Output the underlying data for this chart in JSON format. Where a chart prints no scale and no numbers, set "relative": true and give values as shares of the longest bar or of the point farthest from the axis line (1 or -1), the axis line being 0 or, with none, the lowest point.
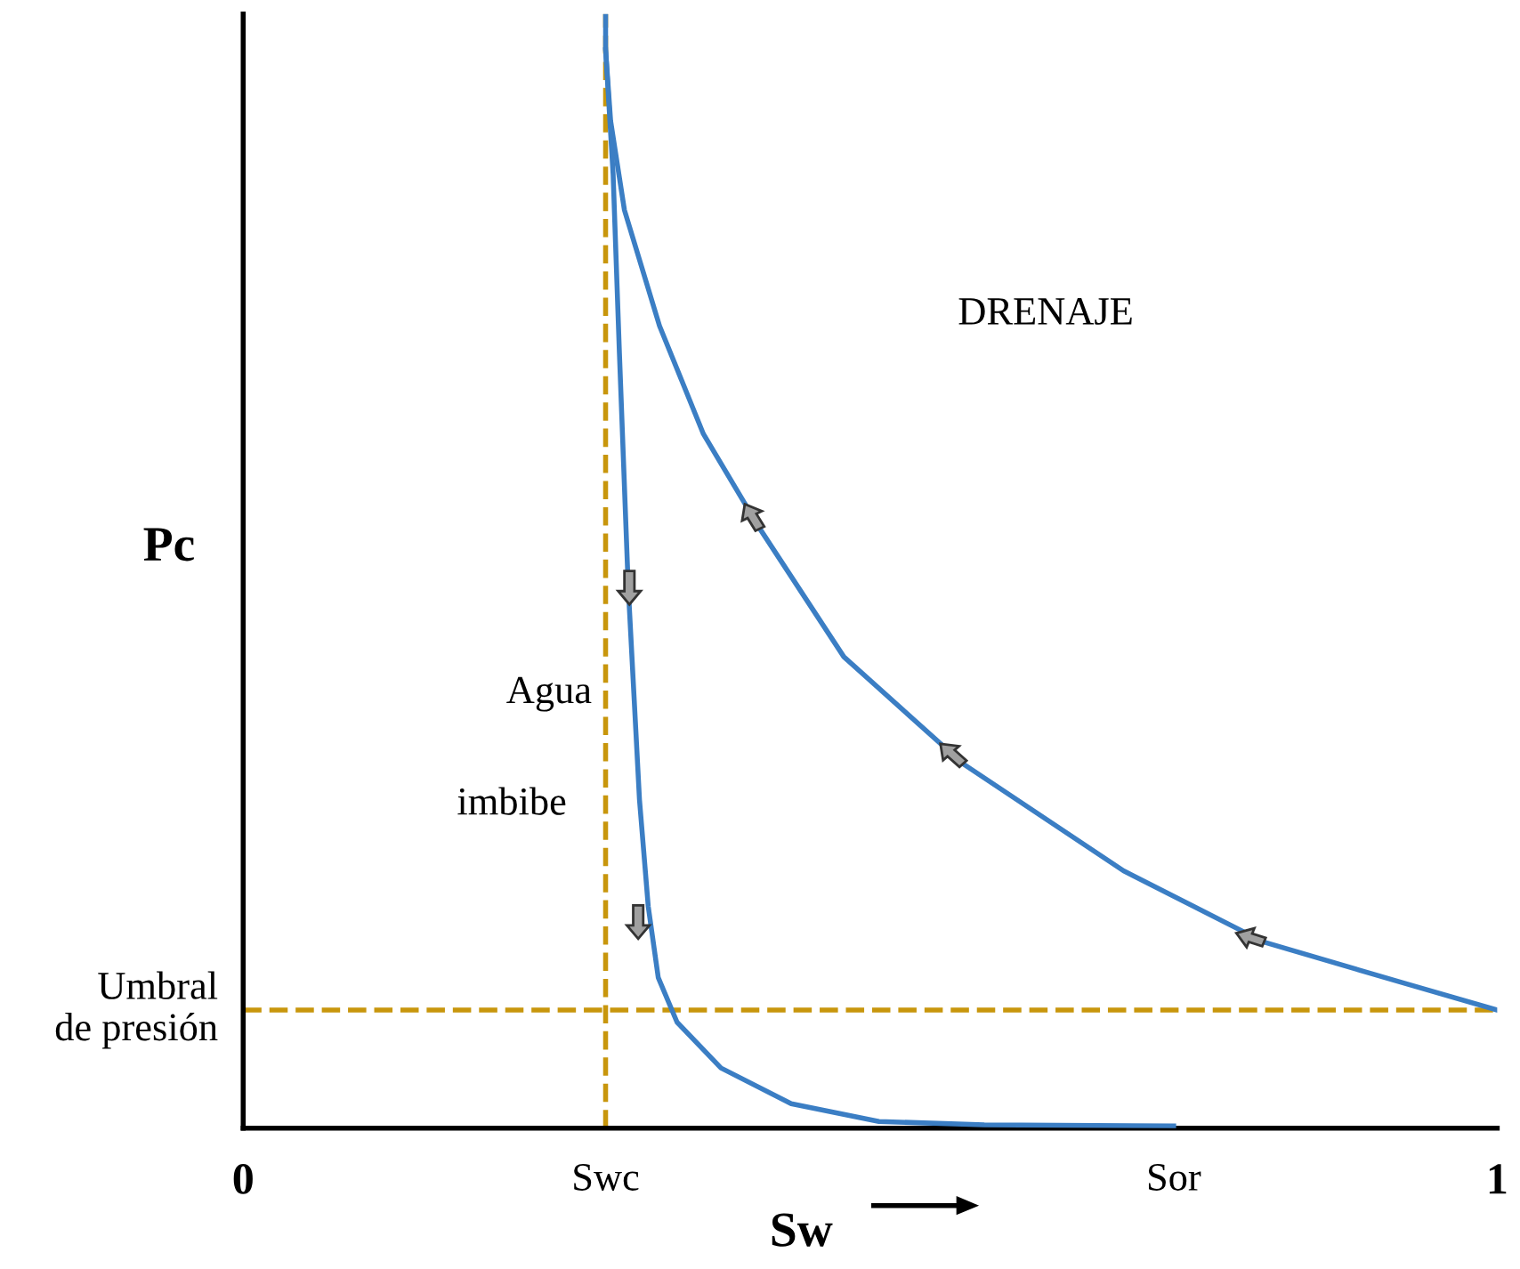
{
  "chart_data": {
    "type": "line",
    "relative": true,
    "xlabel": "Sw",
    "ylabel": "Pc",
    "xlim": [
      0,
      1
    ],
    "xticks": [
      0,
      {
        "value": 0.289,
        "label": "Swc"
      },
      {
        "value": 0.742,
        "label": "Sor"
      },
      1
    ],
    "series": [
      {
        "color": "#3b7ec4",
        "x": [
          1.0,
          0.926,
          0.814,
          0.702,
          0.574,
          0.479,
          0.412,
          0.367,
          0.332,
          0.304,
          0.293,
          0.289,
          0.289
        ],
        "values": [
          0.106,
          0.13,
          0.167,
          0.231,
          0.327,
          0.423,
          0.538,
          0.623,
          0.72,
          0.824,
          0.904,
          0.968,
          1.0
        ]
      },
      {
        "color": "#3b7ec4",
        "x": [
          0.289,
          0.295,
          0.3,
          0.307,
          0.316,
          0.323,
          0.331,
          0.346,
          0.381,
          0.437,
          0.507,
          0.591,
          0.742
        ],
        "values": [
          0.968,
          0.856,
          0.696,
          0.487,
          0.295,
          0.199,
          0.135,
          0.095,
          0.054,
          0.022,
          0.006,
          0.003,
          0.002
        ]
      }
    ],
    "ref_lines": [
      {
        "axis": "x",
        "value": 0.289,
        "color": "#c8960c",
        "line_style": "dashed"
      },
      {
        "axis": "y",
        "value": 0.106,
        "label": "Umbral\nde presión",
        "color": "#c8960c",
        "line_style": "dashed"
      }
    ],
    "annotations": [
      "DRENAJE",
      "Agua",
      "imbibe"
    ],
    "line_style": "solid",
    "legend": false,
    "grid": false
  }
}
